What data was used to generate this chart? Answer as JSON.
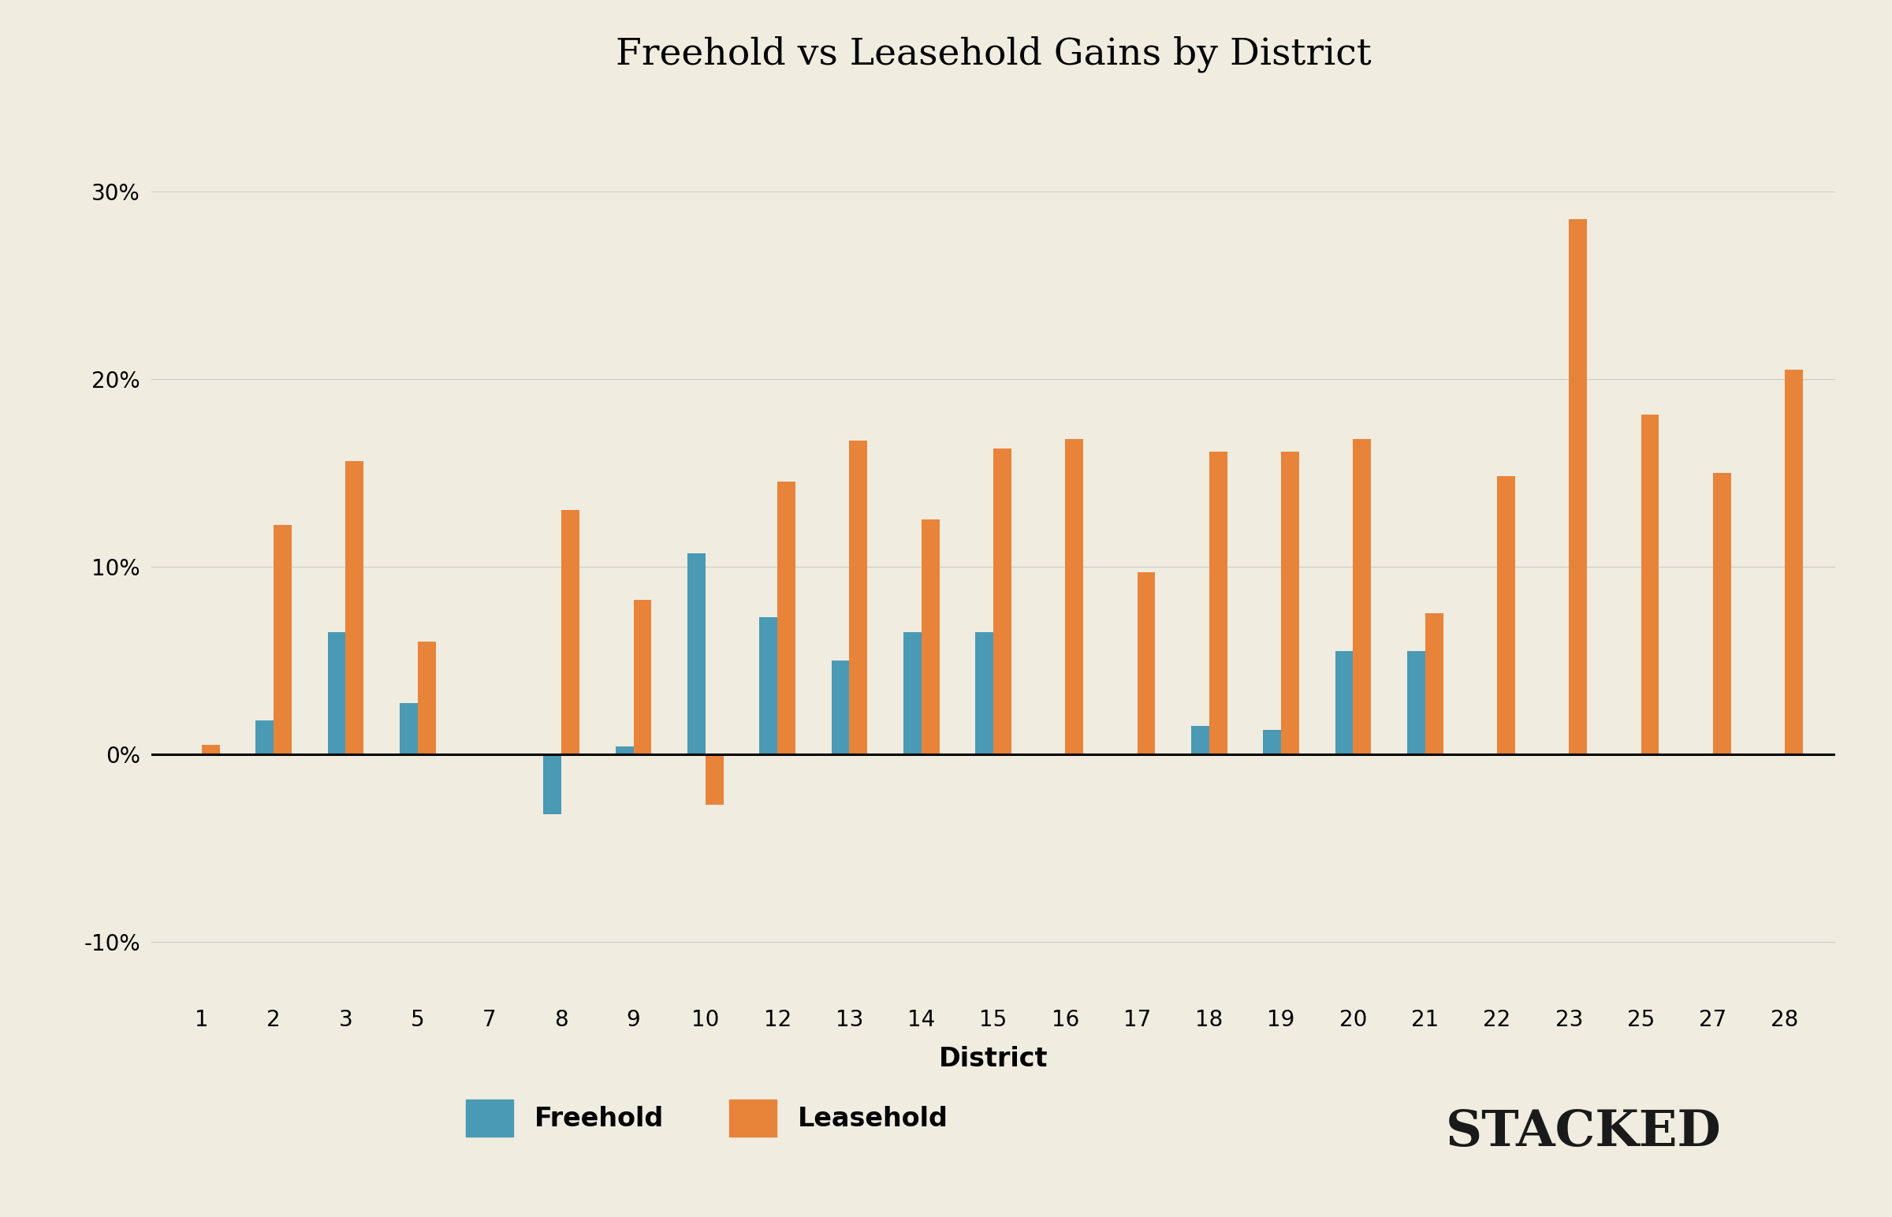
{
  "title": "Freehold vs Leasehold Gains by District",
  "xlabel": "District",
  "background_color": "#f0ece0",
  "freehold_color": "#4a9ab5",
  "leasehold_color": "#e8833a",
  "ylim": [
    -0.13,
    0.35
  ],
  "yticks": [
    -0.1,
    0.0,
    0.1,
    0.2,
    0.3
  ],
  "ytick_labels": [
    "-10%",
    "0%",
    "10%",
    "20%",
    "30%"
  ],
  "districts": [
    1,
    2,
    3,
    5,
    7,
    8,
    9,
    10,
    12,
    13,
    14,
    15,
    16,
    17,
    18,
    19,
    20,
    21,
    22,
    23,
    25,
    27,
    28
  ],
  "freehold_values": [
    0.0,
    0.018,
    0.065,
    0.027,
    0.0,
    -0.032,
    0.004,
    0.107,
    0.073,
    0.05,
    0.065,
    0.065,
    0.0,
    0.0,
    0.015,
    0.013,
    0.055,
    0.055,
    0.0,
    0.0,
    0.0,
    0.0,
    0.0
  ],
  "leasehold_values": [
    0.005,
    0.122,
    0.156,
    0.06,
    0.0,
    0.13,
    0.082,
    -0.027,
    0.145,
    0.167,
    0.125,
    0.163,
    0.168,
    0.097,
    0.161,
    0.161,
    0.168,
    0.075,
    0.148,
    0.285,
    0.181,
    0.15,
    0.205
  ],
  "bar_width": 0.25,
  "title_fontsize": 34,
  "tick_fontsize": 20,
  "label_fontsize": 24,
  "legend_fontsize": 24,
  "watermark": "STACKED",
  "watermark_color": "#1a1a1a",
  "watermark_fontsize": 46
}
